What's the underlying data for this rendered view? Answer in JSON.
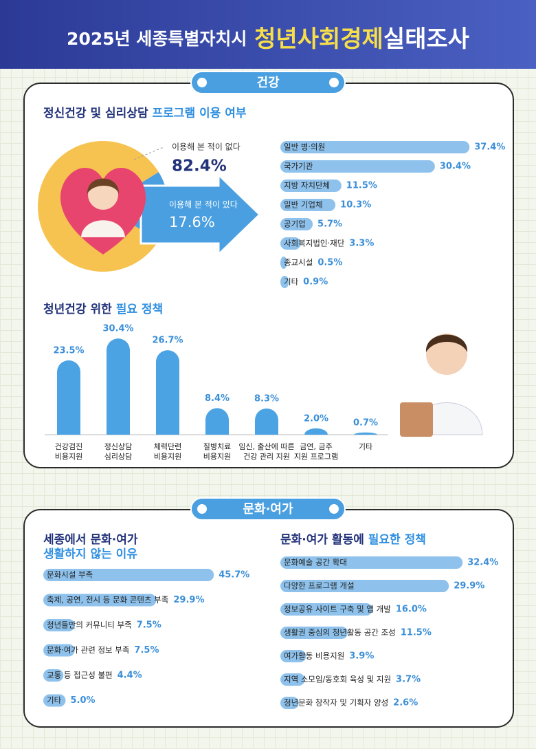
{
  "header": {
    "title_prefix": "2025년 세종특별자치시",
    "title_highlight": "청년사회경제",
    "title_suffix": "실태조사"
  },
  "sections": [
    "건강",
    "문화·여가"
  ],
  "chart_data": [
    {
      "type": "pie",
      "title": "정신건강 및 심리상담",
      "title_highlight": "프로그램 이용 여부",
      "categories": [
        "이용해 본 적이 없다",
        "이용해 본 적이 있다"
      ],
      "values": [
        82.4,
        17.6
      ],
      "value_labels": [
        "82.4%",
        "17.6%"
      ],
      "colors": [
        "#f6c350",
        "#4a9fe0"
      ]
    },
    {
      "type": "hbar",
      "categories": [
        "일반 병·의원",
        "국가기관",
        "지방 자치단체",
        "일반 기업체",
        "공기업",
        "사회복지법인·재단",
        "종교시설",
        "기타"
      ],
      "values": [
        37.4,
        30.4,
        11.5,
        10.3,
        5.7,
        3.3,
        0.5,
        0.9
      ],
      "value_labels": [
        "37.4%",
        "30.4%",
        "11.5%",
        "10.3%",
        "5.7%",
        "3.3%",
        "0.5%",
        "0.9%"
      ],
      "color": "#8ec2ec"
    },
    {
      "type": "bar",
      "title": "청년건강 위한",
      "title_highlight": "필요 정책",
      "categories": [
        "건강검진\n비용지원",
        "정신상담\n심리상담",
        "체력단련\n비용지원",
        "질병치료\n비용지원",
        "임신, 출산에 따른\n건강 관리 지원",
        "금연, 금주\n지원 프로그램",
        "기타"
      ],
      "values": [
        23.5,
        30.4,
        26.7,
        8.4,
        8.3,
        2.0,
        0.7
      ],
      "value_labels": [
        "23.5%",
        "30.4%",
        "26.7%",
        "8.4%",
        "8.3%",
        "2.0%",
        "0.7%"
      ],
      "color": "#4ba3e3"
    },
    {
      "type": "hbar",
      "title": "세종에서 문화·여가",
      "title_highlight": "생활하지 않는 이유",
      "categories": [
        "문화시설 부족",
        "축제, 공연, 전시 등 문화 콘텐츠 부족",
        "청년들만의 커뮤니티 부족",
        "문화·여가 관련 정보 부족",
        "교통 등 접근성 불편",
        "기타"
      ],
      "values": [
        45.7,
        29.9,
        7.5,
        7.5,
        4.4,
        5.0
      ],
      "value_labels": [
        "45.7%",
        "29.9%",
        "7.5%",
        "7.5%",
        "4.4%",
        "5.0%"
      ],
      "color": "#8ec2ec"
    },
    {
      "type": "hbar",
      "title": "문화·여가 활동에",
      "title_highlight": "필요한 정책",
      "categories": [
        "문화예술 공간 확대",
        "다양한 프로그램 개설",
        "정보공유 사이트 구축 및 앱 개발",
        "생활권 중심의 청년활동 공간 조성",
        "여가활동 비용지원",
        "지역 소모임/동호회 육성 및 지원",
        "청년문화 창작자 및 기획자 양성"
      ],
      "values": [
        32.4,
        29.9,
        16.0,
        11.5,
        3.9,
        3.7,
        2.6
      ],
      "value_labels": [
        "32.4%",
        "29.9%",
        "16.0%",
        "11.5%",
        "3.9%",
        "3.7%",
        "2.6%"
      ],
      "color": "#8ec2ec"
    }
  ]
}
